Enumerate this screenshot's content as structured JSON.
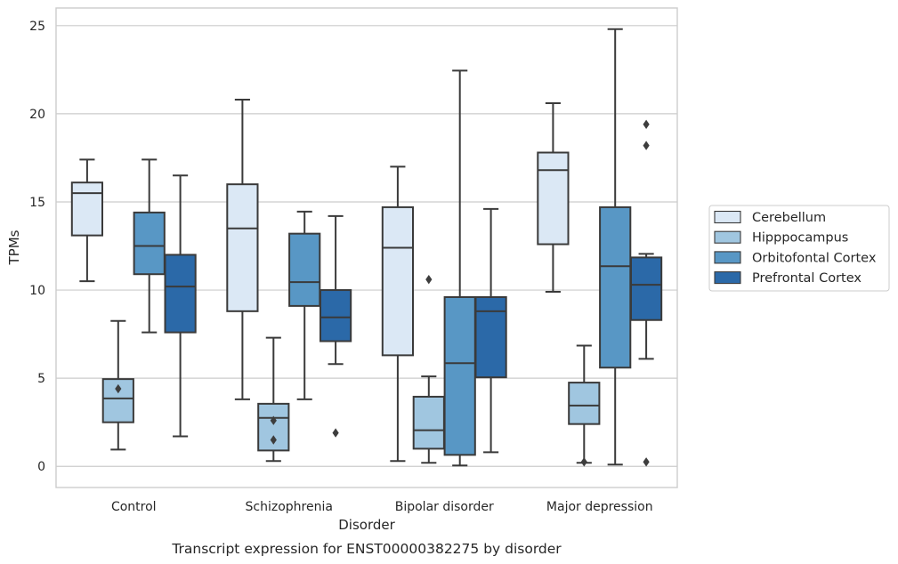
{
  "chart_data": {
    "type": "boxplot",
    "title": "",
    "caption": "Transcript expression for ENST00000382275 by disorder",
    "xlabel": "Disorder",
    "ylabel": "TPMs",
    "ylim": [
      -1.2,
      26
    ],
    "yticks": [
      0,
      5,
      10,
      15,
      20,
      25
    ],
    "grid": "horizontal",
    "legend_position": "right",
    "categories": [
      "Control",
      "Schizophrenia",
      "Bipolar disorder",
      "Major depression"
    ],
    "series": [
      {
        "name": "Cerebellum",
        "color": "#dbe8f5",
        "boxes": [
          {
            "whislo": 10.5,
            "q1": 13.1,
            "med": 15.5,
            "q3": 16.1,
            "whishi": 17.4,
            "fliers": []
          },
          {
            "whislo": 3.8,
            "q1": 8.8,
            "med": 13.5,
            "q3": 16.0,
            "whishi": 20.8,
            "fliers": []
          },
          {
            "whislo": 0.3,
            "q1": 6.3,
            "med": 12.4,
            "q3": 14.7,
            "whishi": 17.0,
            "fliers": []
          },
          {
            "whislo": 9.9,
            "q1": 12.6,
            "med": 16.8,
            "q3": 17.8,
            "whishi": 20.6,
            "fliers": []
          }
        ]
      },
      {
        "name": "Hipppocampus",
        "color": "#a0c6e0",
        "boxes": [
          {
            "whislo": 0.95,
            "q1": 2.5,
            "med": 3.85,
            "q3": 4.95,
            "whishi": 8.25,
            "fliers": [
              4.4
            ]
          },
          {
            "whislo": 0.3,
            "q1": 0.9,
            "med": 2.75,
            "q3": 3.55,
            "whishi": 7.3,
            "fliers": [
              2.6,
              1.5
            ]
          },
          {
            "whislo": 0.2,
            "q1": 1.0,
            "med": 2.05,
            "q3": 3.95,
            "whishi": 5.1,
            "fliers": [
              10.6
            ]
          },
          {
            "whislo": 0.2,
            "q1": 2.4,
            "med": 3.45,
            "q3": 4.75,
            "whishi": 6.85,
            "fliers": [
              0.25
            ]
          }
        ]
      },
      {
        "name": "Orbitofontal Cortex",
        "color": "#5897c5",
        "boxes": [
          {
            "whislo": 7.6,
            "q1": 10.9,
            "med": 12.5,
            "q3": 14.4,
            "whishi": 17.4,
            "fliers": []
          },
          {
            "whislo": 3.8,
            "q1": 9.1,
            "med": 10.45,
            "q3": 13.2,
            "whishi": 14.45,
            "fliers": []
          },
          {
            "whislo": 0.05,
            "q1": 0.65,
            "med": 5.85,
            "q3": 9.6,
            "whishi": 22.45,
            "fliers": []
          },
          {
            "whislo": 0.1,
            "q1": 5.6,
            "med": 11.35,
            "q3": 14.7,
            "whishi": 24.8,
            "fliers": []
          }
        ]
      },
      {
        "name": "Prefrontal Cortex",
        "color": "#2b69a8",
        "boxes": [
          {
            "whislo": 1.7,
            "q1": 7.6,
            "med": 10.2,
            "q3": 12.0,
            "whishi": 16.5,
            "fliers": []
          },
          {
            "whislo": 5.8,
            "q1": 7.1,
            "med": 8.45,
            "q3": 10.0,
            "whishi": 14.2,
            "fliers": [
              1.9
            ]
          },
          {
            "whislo": 0.8,
            "q1": 5.05,
            "med": 8.8,
            "q3": 9.6,
            "whishi": 14.6,
            "fliers": []
          },
          {
            "whislo": 6.1,
            "q1": 8.3,
            "med": 10.3,
            "q3": 11.85,
            "whishi": 12.05,
            "fliers": [
              19.4,
              18.2,
              0.25
            ]
          }
        ]
      }
    ]
  }
}
